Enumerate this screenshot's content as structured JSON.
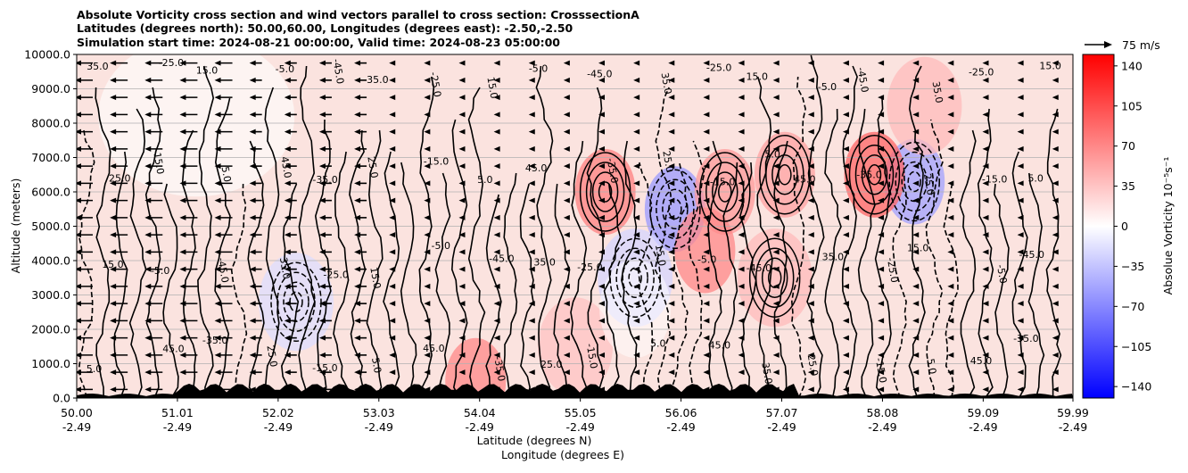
{
  "chart_data": {
    "type": "heatmap",
    "title_lines": [
      "Absolute Vorticity cross section and wind vectors parallel to cross section: CrosssectionA",
      "Latitudes (degrees north): 50.00,60.00, Longitudes (degrees east): -2.50,-2.50",
      "Simulation start time: 2024-08-21 00:00:00, Valid time: 2024-08-23 05:00:00"
    ],
    "ylabel": "Altitude (meters)",
    "xlabel_line1": "Latitude (degrees N)",
    "xlabel_line2": "Longitude (degrees E)",
    "ylim": [
      0,
      10000
    ],
    "yticks": [
      "0.0",
      "1000.0",
      "2000.0",
      "3000.0",
      "4000.0",
      "5000.0",
      "6000.0",
      "7000.0",
      "8000.0",
      "9000.0",
      "10000.0"
    ],
    "ytick_values": [
      0,
      1000,
      2000,
      3000,
      4000,
      5000,
      6000,
      7000,
      8000,
      9000,
      10000
    ],
    "xlim": [
      50.0,
      59.99
    ],
    "xtick_values": [
      50.0,
      51.01,
      52.02,
      53.03,
      54.04,
      55.05,
      56.06,
      57.07,
      58.08,
      59.09,
      59.99
    ],
    "xticks_lat": [
      "50.00",
      "51.01",
      "52.02",
      "53.03",
      "54.04",
      "55.05",
      "56.06",
      "57.07",
      "58.08",
      "59.09",
      "59.99"
    ],
    "xticks_lon": [
      "-2.49",
      "-2.49",
      "-2.49",
      "-2.49",
      "-2.49",
      "-2.49",
      "-2.49",
      "-2.49",
      "-2.49",
      "-2.49",
      "-2.49"
    ],
    "grid_y": true,
    "colorbar": {
      "label": "Absolue Vorticity 10$^{-5}$s$^{-1}$",
      "label_display": "Absolue Vorticity 10⁻⁵s⁻¹",
      "range": [
        -150,
        150
      ],
      "ticks": [
        "140",
        "105",
        "70",
        "35",
        "0",
        "−35",
        "−70",
        "−105",
        "−140"
      ],
      "tick_values": [
        140,
        105,
        70,
        35,
        0,
        -35,
        -70,
        -105,
        -140
      ],
      "colormap": "bwr"
    },
    "quiver_key": {
      "label": "75 m/s"
    },
    "contour_labels": [
      "5.0",
      "15.0",
      "25.0",
      "35.0",
      "45.0",
      "-5.0",
      "-15.0",
      "-25.0",
      "-35.0",
      "-45.0"
    ],
    "vorticity_anomalies": [
      {
        "lat": 56.0,
        "alt": 5500,
        "value": -60
      },
      {
        "lat": 58.4,
        "alt": 6300,
        "value": -55
      },
      {
        "lat": 55.6,
        "alt": 3500,
        "value": -25
      },
      {
        "lat": 52.2,
        "alt": 2800,
        "value": -20
      },
      {
        "lat": 58.0,
        "alt": 6500,
        "value": 90
      },
      {
        "lat": 55.3,
        "alt": 6000,
        "value": 75
      },
      {
        "lat": 56.5,
        "alt": 6000,
        "value": 60
      },
      {
        "lat": 57.1,
        "alt": 6500,
        "value": 55
      },
      {
        "lat": 57.0,
        "alt": 3500,
        "value": 40
      },
      {
        "lat": 58.5,
        "alt": 8500,
        "value": 40
      },
      {
        "lat": 56.3,
        "alt": 4300,
        "value": 70
      },
      {
        "lat": 54.0,
        "alt": 500,
        "value": 70
      },
      {
        "lat": 55.0,
        "alt": 1500,
        "value": 35
      }
    ],
    "wind_vector_columns_lat": [
      50.0,
      50.35,
      50.7,
      51.05,
      51.4,
      51.75,
      52.1,
      52.45,
      52.8,
      53.15,
      53.5,
      53.85,
      54.2,
      54.55,
      54.9,
      55.25,
      55.6,
      55.95,
      56.3,
      56.65,
      57.0,
      57.35,
      57.7,
      58.05,
      58.4,
      58.75,
      59.1,
      59.45,
      59.8
    ]
  }
}
